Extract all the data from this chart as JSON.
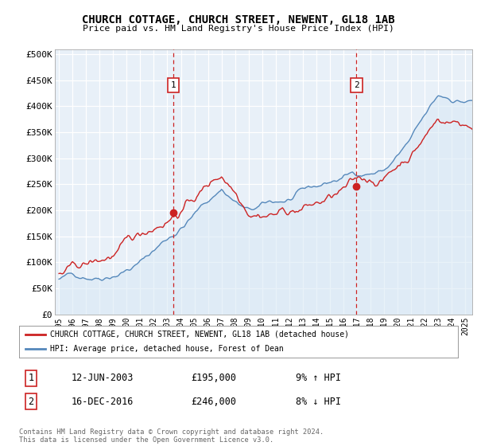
{
  "title": "CHURCH COTTAGE, CHURCH STREET, NEWENT, GL18 1AB",
  "subtitle": "Price paid vs. HM Land Registry's House Price Index (HPI)",
  "ylabel_ticks": [
    "£0",
    "£50K",
    "£100K",
    "£150K",
    "£200K",
    "£250K",
    "£300K",
    "£350K",
    "£400K",
    "£450K",
    "£500K"
  ],
  "ytick_values": [
    0,
    50000,
    100000,
    150000,
    200000,
    250000,
    300000,
    350000,
    400000,
    450000,
    500000
  ],
  "ylim": [
    0,
    510000
  ],
  "xlim_start": 1994.7,
  "xlim_end": 2025.5,
  "xtick_years": [
    1995,
    1996,
    1997,
    1998,
    1999,
    2000,
    2001,
    2002,
    2003,
    2004,
    2005,
    2006,
    2007,
    2008,
    2009,
    2010,
    2011,
    2012,
    2013,
    2014,
    2015,
    2016,
    2017,
    2018,
    2019,
    2020,
    2021,
    2022,
    2023,
    2024,
    2025
  ],
  "sale1_x": 2003.44,
  "sale1_y": 195000,
  "sale1_label": "1",
  "sale2_x": 2016.95,
  "sale2_y": 246000,
  "sale2_label": "2",
  "line_color_property": "#cc2222",
  "line_color_hpi": "#5588bb",
  "fill_color_hpi": "#d8e8f5",
  "background_color": "#e8f0f8",
  "grid_color": "#ffffff",
  "legend_label_property": "CHURCH COTTAGE, CHURCH STREET, NEWENT, GL18 1AB (detached house)",
  "legend_label_hpi": "HPI: Average price, detached house, Forest of Dean",
  "table_row1_num": "1",
  "table_row1_date": "12-JUN-2003",
  "table_row1_price": "£195,000",
  "table_row1_hpi": "9% ↑ HPI",
  "table_row2_num": "2",
  "table_row2_date": "16-DEC-2016",
  "table_row2_price": "£246,000",
  "table_row2_hpi": "8% ↓ HPI",
  "footnote": "Contains HM Land Registry data © Crown copyright and database right 2024.\nThis data is licensed under the Open Government Licence v3.0."
}
